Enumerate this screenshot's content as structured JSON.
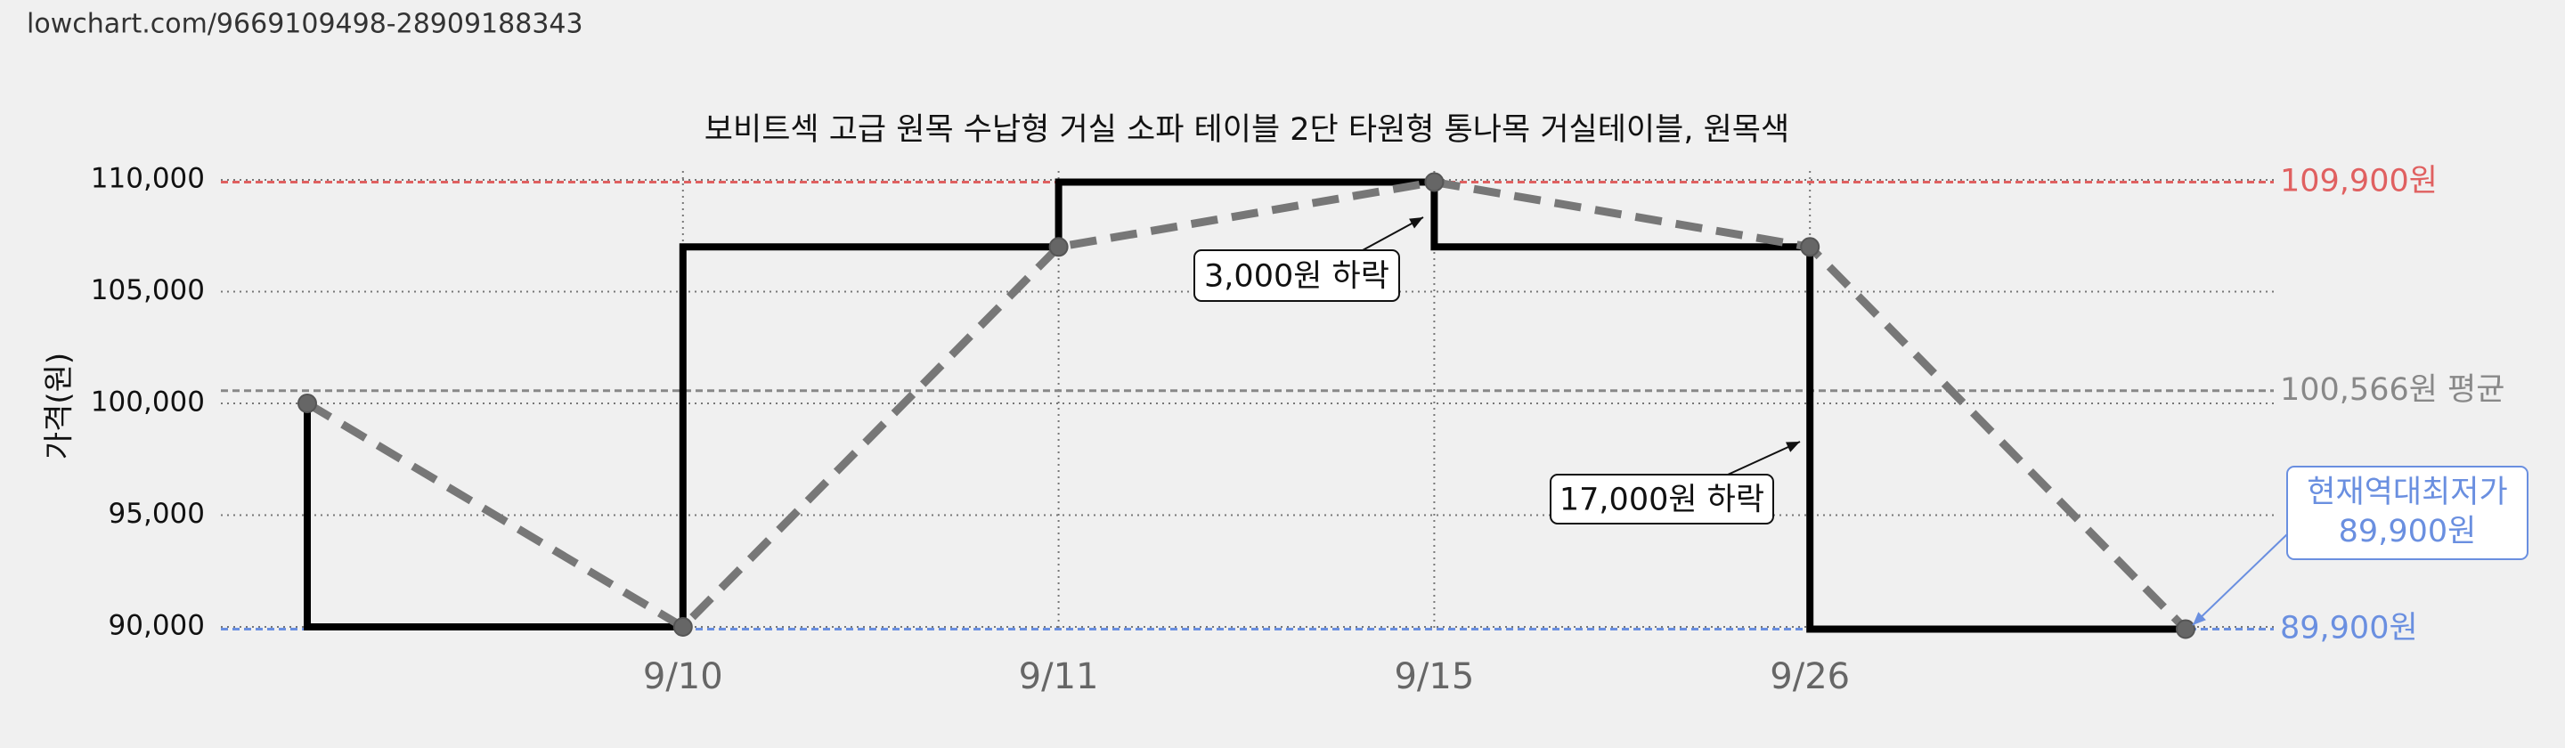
{
  "url": "lowchart.com/9669109498-28909188343",
  "chart_data": {
    "type": "line",
    "title": "보비트섹 고급 원목 수납형 거실 소파 테이블 2단 타원형 통나목 거실테이블, 원목색",
    "y_label": "가격(원)",
    "categories": [
      null,
      "9/10",
      "9/11",
      "9/15",
      "9/26",
      null
    ],
    "values": [
      100000,
      90000,
      107000,
      109900,
      107000,
      89900
    ],
    "color": "#777777",
    "step_color": "#000000",
    "ylim": [
      90000,
      110000
    ],
    "yticks": [
      {
        "value": 90000,
        "label": "90,000"
      },
      {
        "value": 95000,
        "label": "95,000"
      },
      {
        "value": 100000,
        "label": "100,000"
      },
      {
        "value": 105000,
        "label": "105,000"
      },
      {
        "value": 110000,
        "label": "110,000"
      }
    ],
    "grid": true,
    "reference_lines": [
      {
        "value": 109900,
        "label": "109,900원",
        "color": "#e06060"
      },
      {
        "value": 100566,
        "label": "100,566원 평균",
        "color": "#888888"
      },
      {
        "value": 89900,
        "label": "89,900원",
        "color": "#6a8fe0"
      }
    ],
    "annotations": [
      {
        "text": "3,000원 하락"
      },
      {
        "text": "17,000원 하락"
      },
      {
        "lines": [
          "현재역대최저가",
          "89,900원"
        ]
      }
    ]
  }
}
